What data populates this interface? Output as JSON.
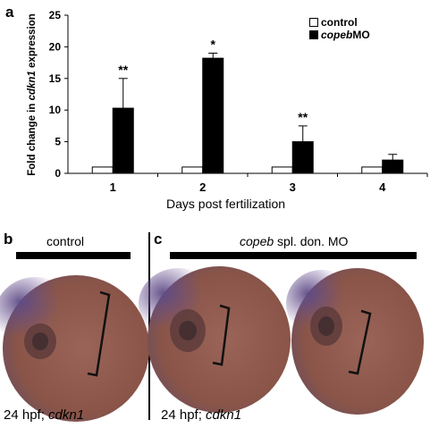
{
  "panels": {
    "a_letter": "a",
    "b_letter": "b",
    "c_letter": "c"
  },
  "chart_data": {
    "type": "bar",
    "categories": [
      "1",
      "2",
      "3",
      "4"
    ],
    "series": [
      {
        "name": "control",
        "values": [
          1,
          1,
          1,
          1
        ],
        "color": "#ffffff"
      },
      {
        "name": "copeb MO",
        "values": [
          10.3,
          18.2,
          5.0,
          2.1
        ],
        "errors": [
          4.7,
          0.8,
          2.5,
          0.9
        ],
        "color": "#000000"
      }
    ],
    "significance": [
      "**",
      "*",
      "**",
      ""
    ],
    "xlabel": "Days post fertilization",
    "ylabel_prefix": "Fold change in ",
    "ylabel_gene": "cdkn1",
    "ylabel_suffix": " expression",
    "ylim": [
      0,
      25
    ],
    "yticks": [
      "0",
      "5",
      "10",
      "15",
      "20",
      "25"
    ],
    "legend_position": "top-right"
  },
  "legend": {
    "control": "control",
    "treated_italic": "copeb",
    "treated_rest": " MO"
  },
  "panel_b": {
    "title": "control",
    "caption_prefix": "24 hpf; ",
    "caption_gene": "cdkn1"
  },
  "panel_c": {
    "title_italic": "copeb",
    "title_rest": " spl. don. MO",
    "caption_prefix": "24 hpf; ",
    "caption_gene": "cdkn1"
  }
}
